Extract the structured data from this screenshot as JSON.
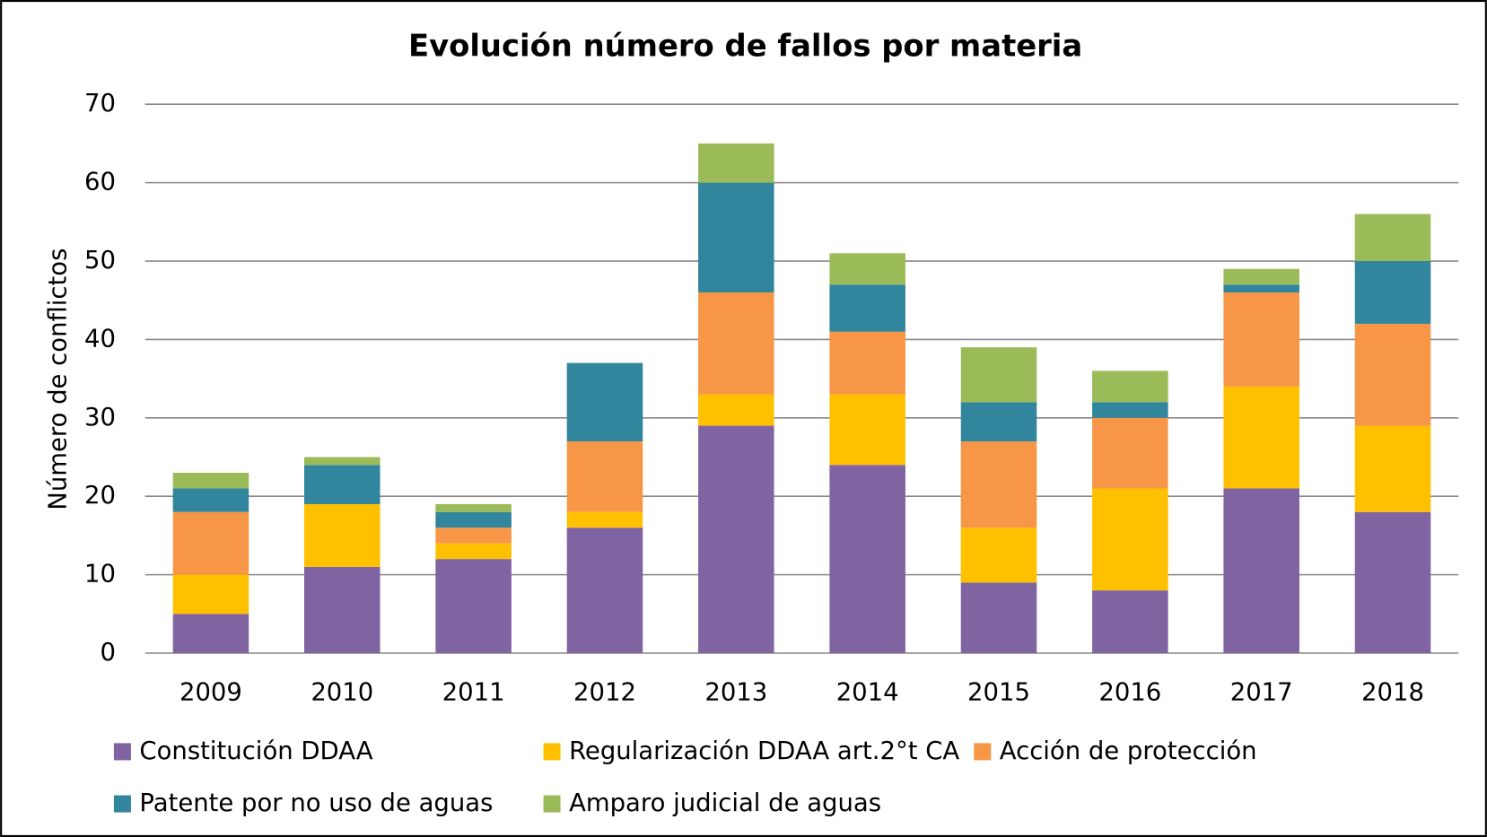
{
  "chart_data": {
    "type": "stacked_bar",
    "title": "Evolución número de fallos por materia",
    "y_label": "Número de conflictos",
    "categories": [
      "2009",
      "2010",
      "2011",
      "2012",
      "2013",
      "2014",
      "2015",
      "2016",
      "2017",
      "2018"
    ],
    "series": [
      {
        "name": "Constitución DDAA",
        "color": "#8064a2",
        "values": [
          5,
          11,
          12,
          16,
          29,
          24,
          9,
          8,
          21,
          18
        ]
      },
      {
        "name": "Regularización DDAA art.2°t CA",
        "color": "#ffc000",
        "values": [
          5,
          8,
          2,
          2,
          4,
          9,
          7,
          13,
          13,
          11
        ]
      },
      {
        "name": "Acción de protección",
        "color": "#f79646",
        "values": [
          8,
          0,
          2,
          9,
          13,
          8,
          11,
          9,
          12,
          13
        ]
      },
      {
        "name": "Patente por no uso de aguas",
        "color": "#31859c",
        "values": [
          3,
          5,
          2,
          10,
          14,
          6,
          5,
          2,
          1,
          8
        ]
      },
      {
        "name": "Amparo judicial de aguas",
        "color": "#9bbb59",
        "values": [
          2,
          1,
          1,
          0,
          5,
          4,
          7,
          4,
          2,
          6
        ]
      }
    ],
    "ylim": [
      0,
      70
    ],
    "yticks": [
      0,
      10,
      20,
      30,
      40,
      50,
      60,
      70
    ],
    "grid": true,
    "legend": "bottom"
  }
}
